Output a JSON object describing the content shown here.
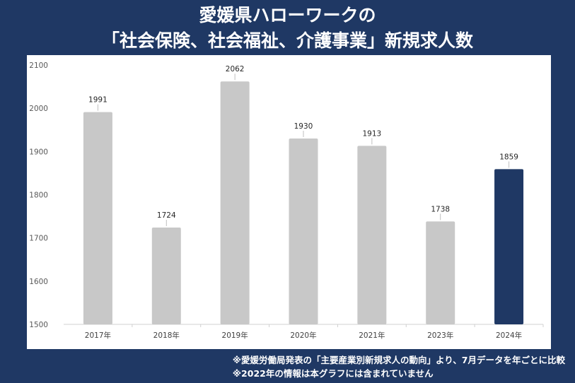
{
  "header": {
    "title_line1": "愛媛県ハローワークの",
    "title_line2": "「社会保険、社会福祉、介護事業」新規求人数"
  },
  "colors": {
    "background": "#1f3864",
    "bar_default": "#c8c8c8",
    "bar_highlight": "#1f3864",
    "panel": "#ffffff"
  },
  "chart_data": {
    "type": "bar",
    "categories": [
      "2017年",
      "2018年",
      "2019年",
      "2020年",
      "2021年",
      "2023年",
      "2024年"
    ],
    "values": [
      1991,
      1724,
      2062,
      1930,
      1913,
      1738,
      1859
    ],
    "highlight_index": 6,
    "ylim": [
      1500,
      2100
    ],
    "yticks": [
      1500,
      1600,
      1700,
      1800,
      1900,
      2000,
      2100
    ],
    "grid": false,
    "legend": "none",
    "data_labels": true
  },
  "notes": {
    "line1": "※愛媛労働局発表の「主要産業別新規求人の動向」より、7月データを年ごとに比較",
    "line2": "※2022年の情報は本グラフには含まれていません"
  }
}
